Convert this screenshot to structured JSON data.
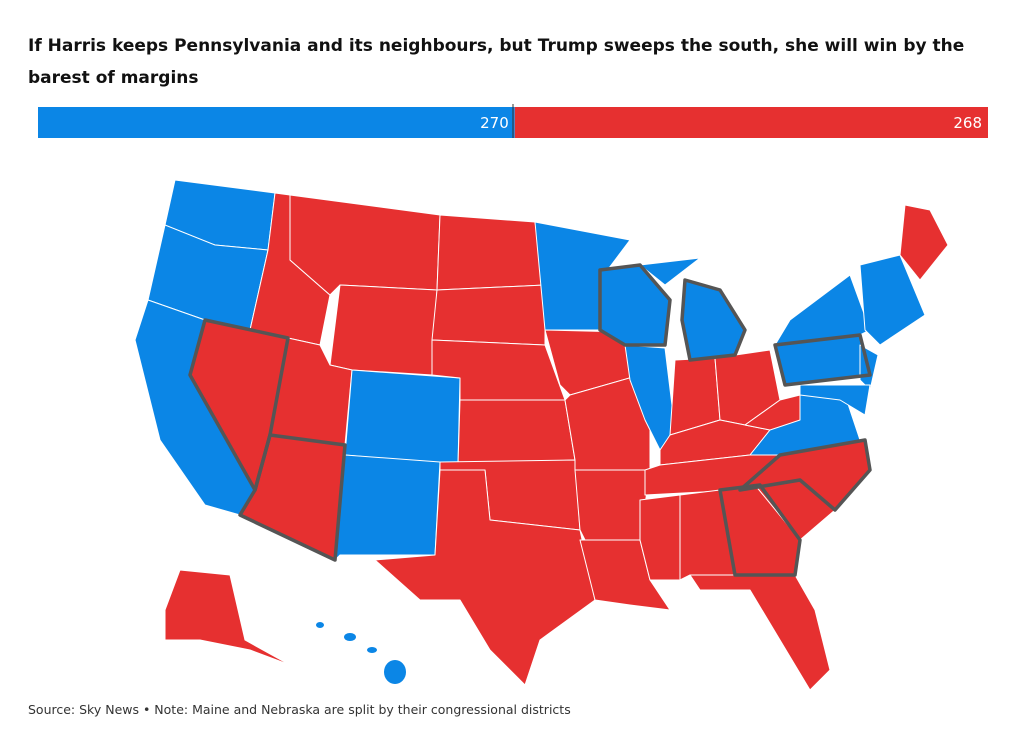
{
  "title": "If Harris keeps Pennsylvania and its neighbours, but Trump sweeps the south, she will win by the barest of margins",
  "tally": [
    {
      "votes": 270,
      "color": "#0b86e6"
    },
    {
      "votes": 268,
      "color": "#e63030"
    }
  ],
  "source": "Source: Sky News • Note: Maine and Nebraska are split by their congressional districts"
}
